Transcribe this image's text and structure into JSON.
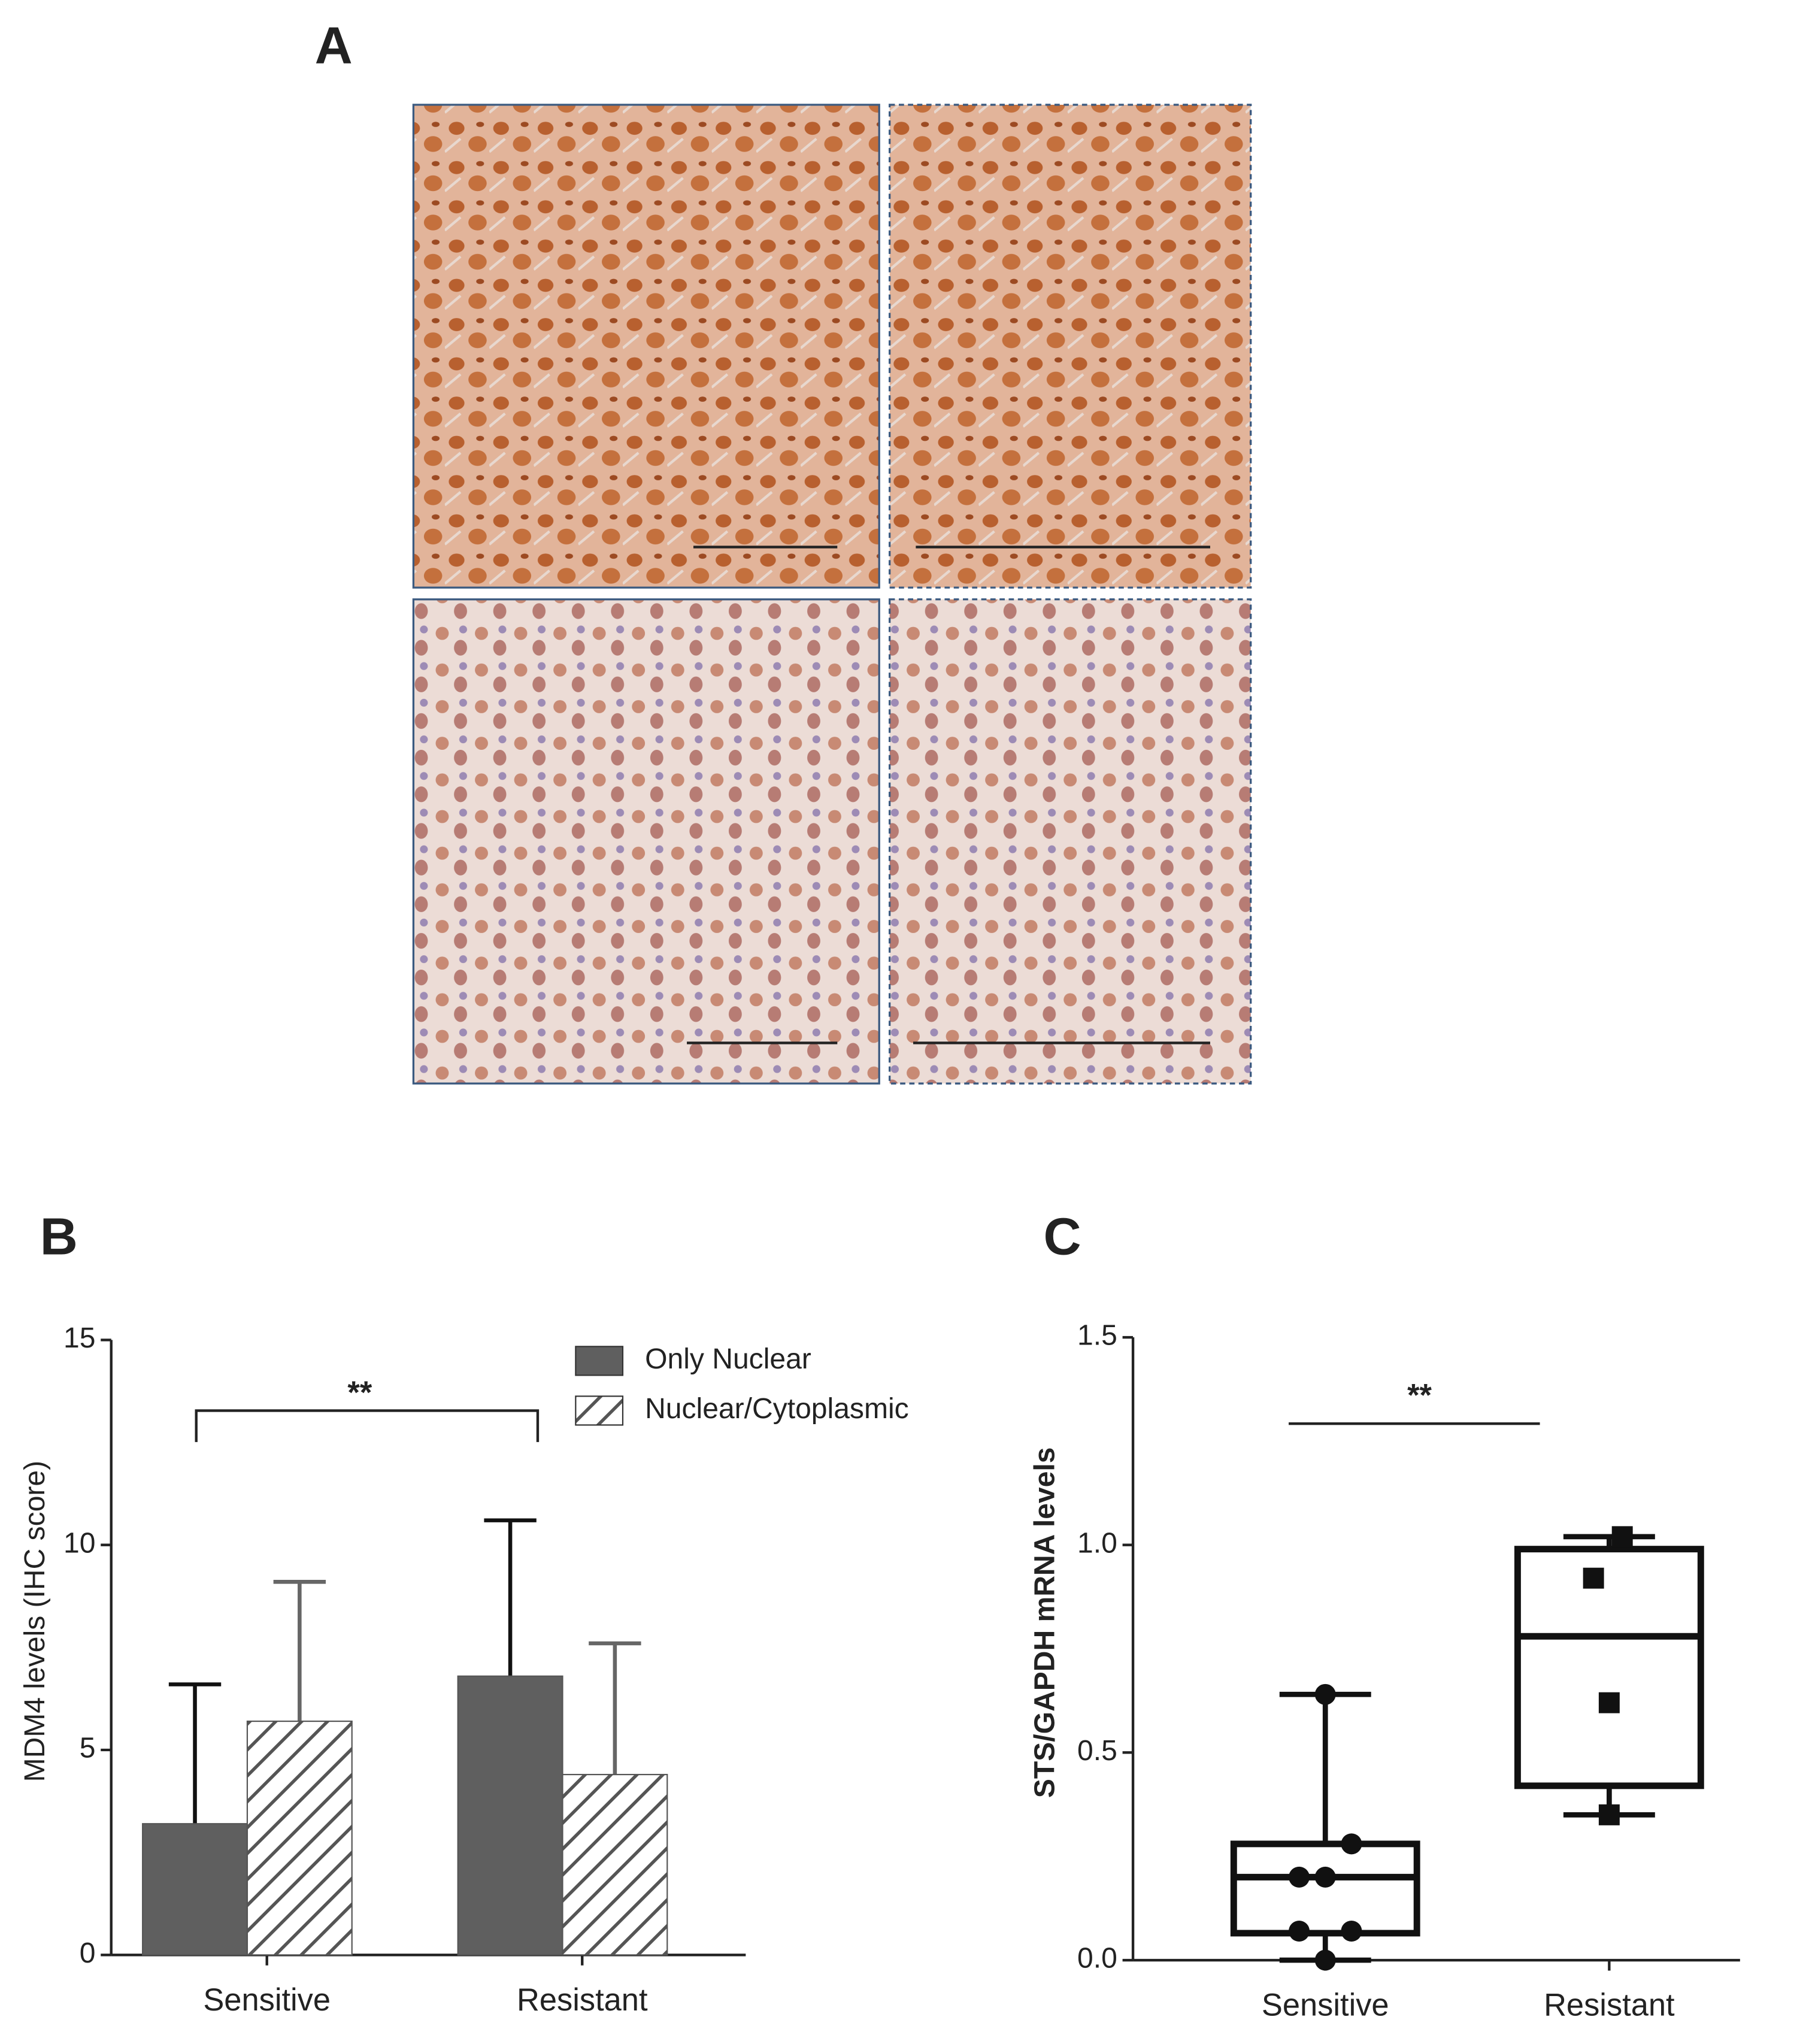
{
  "figure": {
    "panel_labels": [
      "A",
      "B",
      "C"
    ]
  },
  "chart_data": [
    {
      "type": "bar",
      "ylabel": "MDM4 levels (IHC score)",
      "categories": [
        "Sensitive",
        "Resistant"
      ],
      "series": [
        {
          "name": "Only Nuclear",
          "color": "#5f5f5f",
          "error_color": "#111111",
          "values": [
            3.2,
            6.8
          ],
          "errors": [
            3.4,
            3.8
          ]
        },
        {
          "name": "Nuclear/Cytoplasmic",
          "color": "#ffffff",
          "pattern": "hatch",
          "pattern_color": "#555555",
          "error_color": "#666666",
          "values": [
            5.7,
            4.4
          ],
          "errors": [
            3.4,
            3.2
          ]
        }
      ],
      "ylim": [
        0,
        15
      ],
      "yticks": [
        0,
        5,
        10,
        15
      ],
      "annotation": "**",
      "legend": "upper right"
    },
    {
      "type": "box",
      "ylabel": "STS/GAPDH mRNA levels",
      "categories": [
        "Sensitive",
        "Resistant"
      ],
      "boxes": [
        {
          "min": 0,
          "q1": 0.065,
          "median": 0.2,
          "q3": 0.28,
          "max": 0.64,
          "marker": "circle",
          "points": [
            0.64,
            0.28,
            0.2,
            0.2,
            0.07,
            0.07,
            0
          ]
        },
        {
          "min": 0.35,
          "q1": 0.42,
          "median": 0.78,
          "q3": 0.99,
          "max": 1.02,
          "marker": "square",
          "points": [
            1.02,
            0.92,
            0.62,
            0.35
          ]
        }
      ],
      "ylim": [
        0,
        1.5
      ],
      "yticks": [
        {
          "value": 0,
          "label": "0.0"
        },
        0.5,
        {
          "value": 1,
          "label": "1.0"
        },
        1.5
      ],
      "annotation": "**"
    }
  ]
}
